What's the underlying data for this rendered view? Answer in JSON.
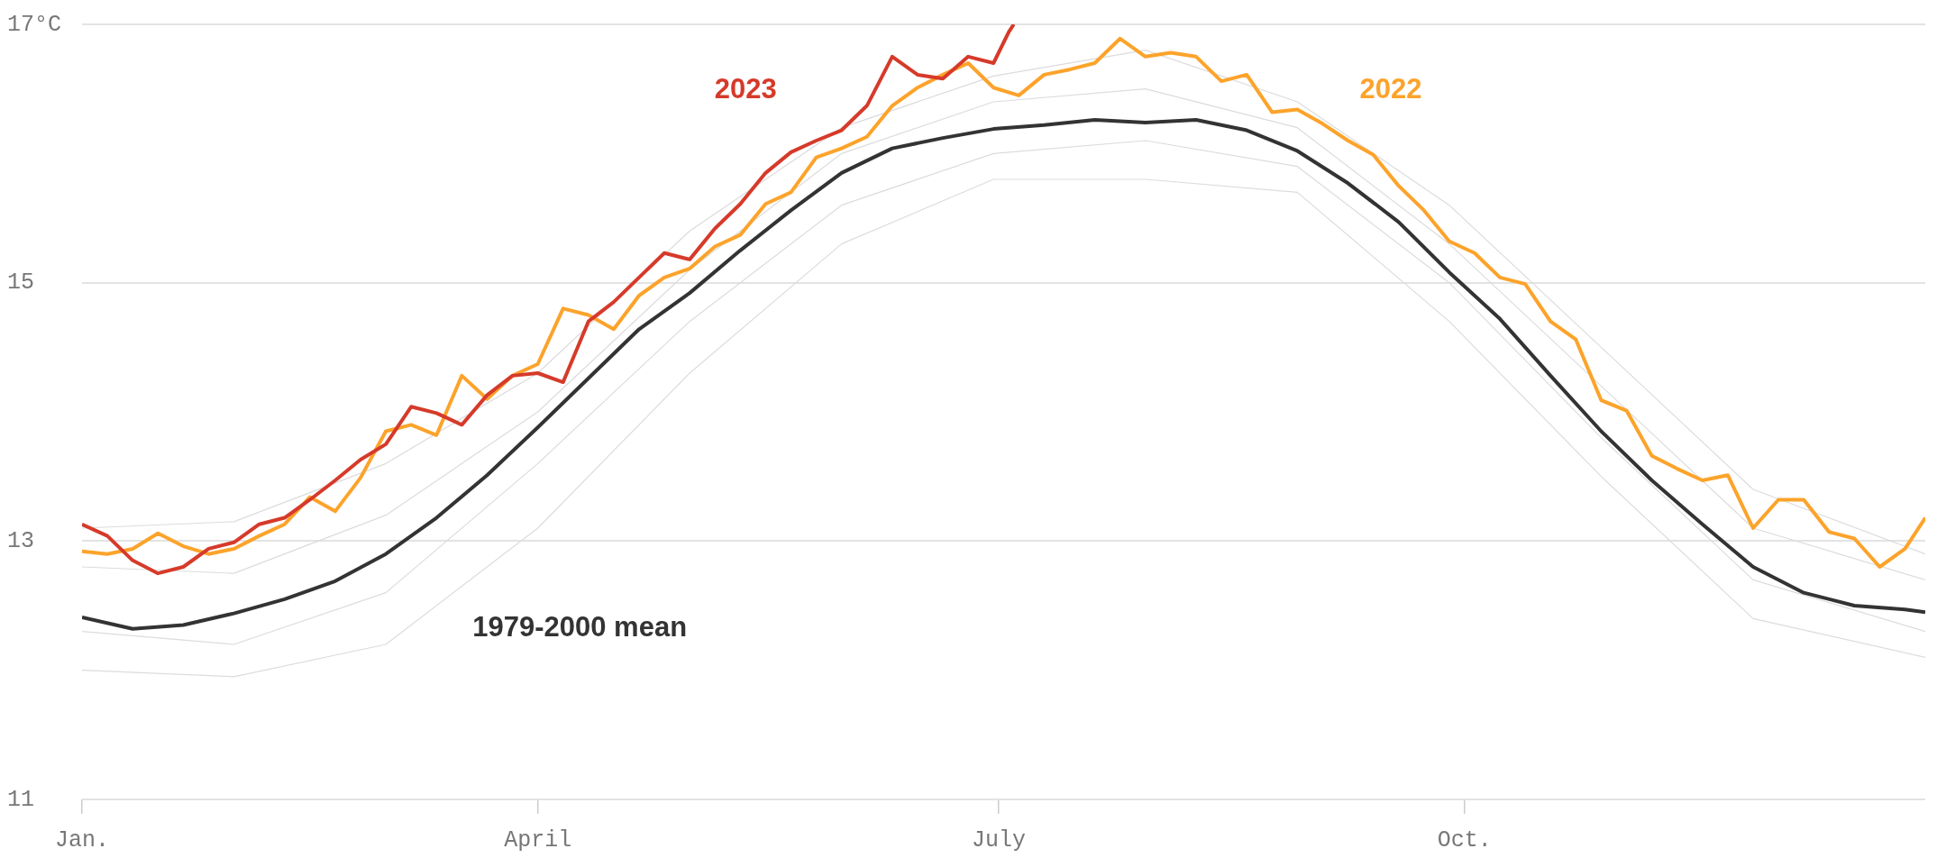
{
  "chart_data": {
    "type": "line",
    "x": [
      "--01-01",
      "--01-06",
      "--01-11",
      "--01-16",
      "--01-21",
      "--01-26",
      "--01-31",
      "--02-05",
      "--02-10",
      "--02-15",
      "--02-20",
      "--02-25",
      "--03-02",
      "--03-07",
      "--03-12",
      "--03-17",
      "--03-22",
      "--03-27",
      "--04-01",
      "--04-06",
      "--04-11",
      "--04-16",
      "--04-21",
      "--04-26",
      "--05-01",
      "--05-06",
      "--05-11",
      "--05-16",
      "--05-21",
      "--05-26",
      "--05-31",
      "--06-05",
      "--06-10",
      "--06-15",
      "--06-20",
      "--06-25",
      "--06-30",
      "--07-05",
      "--07-10",
      "--07-15",
      "--07-20",
      "--07-25",
      "--07-30",
      "--08-04",
      "--08-09",
      "--08-14",
      "--08-19",
      "--08-24",
      "--08-29",
      "--09-03",
      "--09-08",
      "--09-13",
      "--09-18",
      "--09-23",
      "--09-28",
      "--10-03",
      "--10-08",
      "--10-13",
      "--10-18",
      "--10-23",
      "--10-28",
      "--11-02",
      "--11-07",
      "--11-12",
      "--11-17",
      "--11-22",
      "--11-27",
      "--12-02",
      "--12-07",
      "--12-12",
      "--12-17",
      "--12-22",
      "--12-27",
      "--12-31"
    ],
    "series": [
      {
        "color": "#dcdcdc",
        "x": [
          "--01-01",
          "--01-31",
          "--03-02",
          "--04-01",
          "--05-01",
          "--05-31",
          "--06-30",
          "--07-30",
          "--08-29",
          "--09-28",
          "--10-28",
          "--11-27",
          "--12-31"
        ],
        "values": [
          13.1,
          13.15,
          13.6,
          14.3,
          15.4,
          16.2,
          16.6,
          16.8,
          16.4,
          15.6,
          14.5,
          13.4,
          12.9
        ]
      },
      {
        "color": "#dcdcdc",
        "x": [
          "--01-01",
          "--01-31",
          "--03-02",
          "--04-01",
          "--05-01",
          "--05-31",
          "--06-30",
          "--07-30",
          "--08-29",
          "--09-28",
          "--10-28",
          "--11-27",
          "--12-31"
        ],
        "values": [
          12.8,
          12.75,
          13.2,
          14.0,
          15.1,
          16.0,
          16.4,
          16.5,
          16.2,
          15.3,
          14.2,
          13.1,
          12.7
        ]
      },
      {
        "color": "#dcdcdc",
        "x": [
          "--01-01",
          "--01-31",
          "--03-02",
          "--04-01",
          "--05-01",
          "--05-31",
          "--06-30",
          "--07-30",
          "--08-29",
          "--09-28",
          "--10-28",
          "--11-27",
          "--12-31"
        ],
        "values": [
          12.3,
          12.2,
          12.6,
          13.6,
          14.7,
          15.6,
          16.0,
          16.1,
          15.9,
          15.0,
          13.8,
          12.7,
          12.3
        ]
      },
      {
        "color": "#dcdcdc",
        "x": [
          "--01-01",
          "--01-31",
          "--03-02",
          "--04-01",
          "--05-01",
          "--05-31",
          "--06-30",
          "--07-30",
          "--08-29",
          "--09-28",
          "--10-28",
          "--11-27",
          "--12-31"
        ],
        "values": [
          12.0,
          11.95,
          12.2,
          13.1,
          14.3,
          15.3,
          15.8,
          15.8,
          15.7,
          14.7,
          13.5,
          12.4,
          12.1
        ]
      },
      {
        "name": "1979-2000 mean",
        "color": "#333333",
        "x": [
          "--01-01",
          "--01-11",
          "--01-21",
          "--01-31",
          "--02-10",
          "--02-20",
          "--03-02",
          "--03-12",
          "--03-22",
          "--04-01",
          "--04-11",
          "--04-21",
          "--05-01",
          "--05-11",
          "--05-21",
          "--05-31",
          "--06-10",
          "--06-20",
          "--06-30",
          "--07-10",
          "--07-20",
          "--07-30",
          "--08-09",
          "--08-19",
          "--08-29",
          "--09-08",
          "--09-18",
          "--09-28",
          "--10-08",
          "--10-18",
          "--10-28",
          "--11-07",
          "--11-17",
          "--11-27",
          "--12-07",
          "--12-17",
          "--12-27",
          "--12-31"
        ],
        "values": [
          12.41,
          12.32,
          12.35,
          12.44,
          12.55,
          12.69,
          12.9,
          13.18,
          13.51,
          13.88,
          14.26,
          14.64,
          14.92,
          15.25,
          15.56,
          15.85,
          16.04,
          16.12,
          16.19,
          16.22,
          16.26,
          16.24,
          16.26,
          16.18,
          16.02,
          15.77,
          15.47,
          15.08,
          14.72,
          14.28,
          13.85,
          13.47,
          13.13,
          12.8,
          12.6,
          12.5,
          12.47,
          12.45
        ]
      },
      {
        "name": "2022",
        "color": "#fca32b",
        "values": [
          12.92,
          12.9,
          12.94,
          13.06,
          12.96,
          12.9,
          12.94,
          13.04,
          13.13,
          13.34,
          13.23,
          13.49,
          13.85,
          13.9,
          13.82,
          14.28,
          14.1,
          14.28,
          14.37,
          14.8,
          14.75,
          14.64,
          14.9,
          15.04,
          15.11,
          15.28,
          15.37,
          15.61,
          15.7,
          15.97,
          16.04,
          16.13,
          16.37,
          16.51,
          16.61,
          16.7,
          16.51,
          16.45,
          16.61,
          16.65,
          16.7,
          16.89,
          16.75,
          16.78,
          16.75,
          16.56,
          16.61,
          16.32,
          16.34,
          16.23,
          16.1,
          15.99,
          15.75,
          15.56,
          15.32,
          15.23,
          15.04,
          14.99,
          14.7,
          14.56,
          14.09,
          14.01,
          13.66,
          13.56,
          13.47,
          13.51,
          13.1,
          13.32,
          13.32,
          13.07,
          13.02,
          12.8,
          12.94,
          13.18
        ]
      },
      {
        "name": "2023",
        "color": "#d63a2a",
        "x": [
          "--01-01",
          "--01-06",
          "--01-11",
          "--01-16",
          "--01-21",
          "--01-26",
          "--01-31",
          "--02-05",
          "--02-10",
          "--02-15",
          "--02-20",
          "--02-25",
          "--03-02",
          "--03-07",
          "--03-12",
          "--03-17",
          "--03-22",
          "--03-27",
          "--04-01",
          "--04-06",
          "--04-11",
          "--04-16",
          "--04-21",
          "--04-26",
          "--05-01",
          "--05-06",
          "--05-11",
          "--05-16",
          "--05-21",
          "--05-26",
          "--05-31",
          "--06-05",
          "--06-10",
          "--06-15",
          "--06-20",
          "--06-25",
          "--06-30",
          "--07-03",
          "--07-04"
        ],
        "values": [
          13.13,
          13.04,
          12.85,
          12.75,
          12.8,
          12.94,
          12.99,
          13.13,
          13.18,
          13.32,
          13.47,
          13.63,
          13.75,
          14.04,
          13.99,
          13.9,
          14.13,
          14.28,
          14.3,
          14.23,
          14.7,
          14.85,
          15.04,
          15.23,
          15.18,
          15.42,
          15.61,
          15.85,
          16.01,
          16.1,
          16.18,
          16.37,
          16.75,
          16.61,
          16.58,
          16.75,
          16.7,
          16.94,
          17.0
        ]
      }
    ],
    "xlim": [
      "--01-01",
      "--12-31"
    ],
    "xticks": [
      {
        "value": "--01-01",
        "label": "Jan."
      },
      {
        "value": "--04-01",
        "label": "April"
      },
      {
        "value": "--07-01",
        "label": "July"
      },
      {
        "value": "--10-01",
        "label": "Oct."
      }
    ],
    "ylim": [
      11,
      17
    ],
    "yticks": [
      11,
      13,
      15,
      {
        "value": 17,
        "label": "17°C"
      }
    ],
    "grid": "y"
  }
}
